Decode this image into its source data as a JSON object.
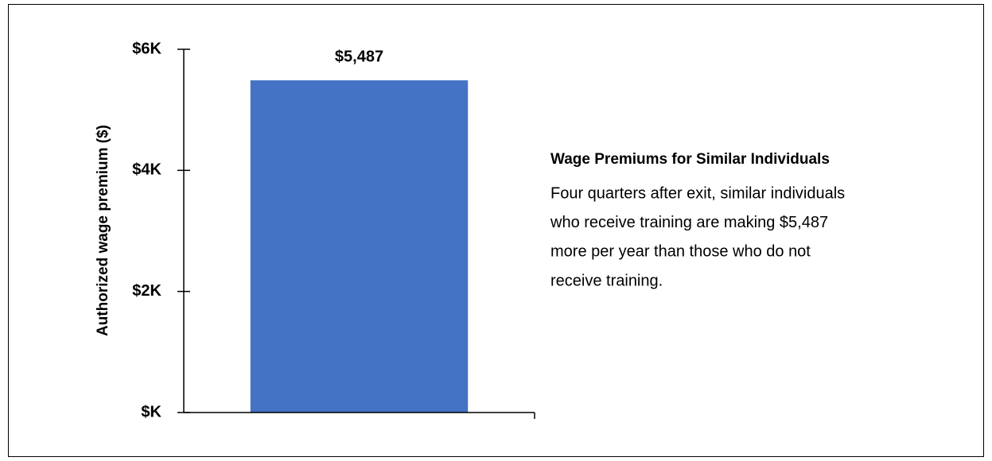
{
  "chart_data": {
    "type": "bar",
    "ylabel": "Authorized wage premium ($)",
    "categories": [
      null
    ],
    "values": [
      5487
    ],
    "value_labels": [
      "$5,487"
    ],
    "color": "#4472c4",
    "ylim": [
      0,
      6000
    ],
    "yticks": [
      {
        "value": 0,
        "label": "$K"
      },
      {
        "value": 2000,
        "label": "$2K"
      },
      {
        "value": 4000,
        "label": "$4K"
      },
      {
        "value": 6000,
        "label": "$6K"
      }
    ],
    "grid": false
  },
  "side_panel": {
    "title": "Wage Premiums for Similar Individuals",
    "lines": [
      "Four quarters after exit, similar individuals",
      "who receive training are making $5,487",
      "more per year than those who do not",
      "receive training."
    ]
  }
}
